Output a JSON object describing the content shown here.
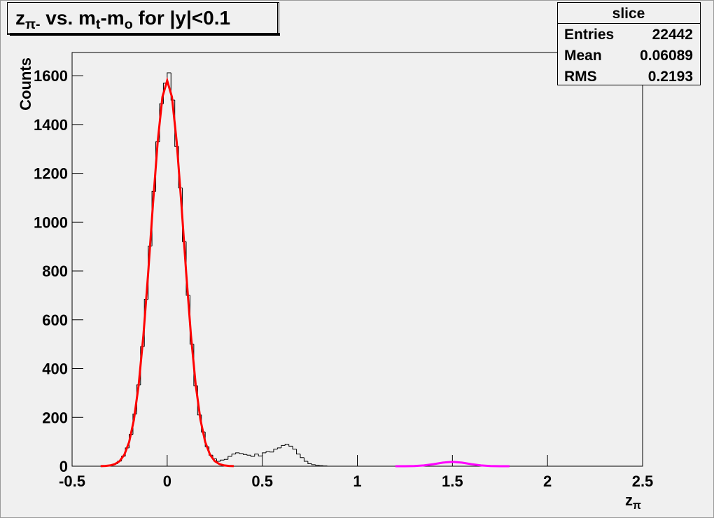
{
  "chart_data": {
    "type": "histogram",
    "title_parts": [
      {
        "text": "z"
      },
      {
        "text": "π-",
        "sub": true
      },
      {
        "text": " vs. m"
      },
      {
        "text": "t",
        "sub": true
      },
      {
        "text": "-m"
      },
      {
        "text": "o",
        "sub": true
      },
      {
        "text": " for |y|<0.1"
      }
    ],
    "xlabel_parts": [
      {
        "text": "z"
      },
      {
        "text": "π",
        "sub": true
      }
    ],
    "ylabel": "Counts",
    "xlim": [
      -0.5,
      2.5
    ],
    "ylim": [
      0,
      1695
    ],
    "xticks": [
      -0.5,
      0,
      0.5,
      1,
      1.5,
      2,
      2.5
    ],
    "yticks": [
      0,
      200,
      400,
      600,
      800,
      1000,
      1200,
      1400,
      1600
    ],
    "series": [
      {
        "type": "histogram",
        "color": "#000000",
        "bins": [
          -0.3,
          -0.28,
          -0.26,
          -0.24,
          -0.22,
          -0.2,
          -0.18,
          -0.16,
          -0.14,
          -0.12,
          -0.1,
          -0.08,
          -0.06,
          -0.04,
          -0.02,
          0,
          0.02,
          0.04,
          0.06,
          0.08,
          0.1,
          0.12,
          0.14,
          0.16,
          0.18,
          0.2,
          0.22,
          0.24,
          0.26,
          0.28,
          0.3,
          0.32,
          0.34,
          0.36,
          0.38,
          0.4,
          0.42,
          0.44,
          0.46,
          0.48,
          0.5,
          0.52,
          0.54,
          0.56,
          0.58,
          0.6,
          0.62,
          0.64,
          0.66,
          0.68,
          0.7,
          0.72,
          0.74,
          0.76,
          0.78,
          0.8,
          0.82,
          0.84
        ],
        "values": [
          5,
          10,
          21,
          41,
          75,
          130,
          214,
          333,
          490,
          684,
          902,
          1126,
          1329,
          1485,
          1569,
          1612,
          1500,
          1310,
          1140,
          920,
          700,
          500,
          330,
          210,
          140,
          80,
          45,
          30,
          20,
          25,
          28,
          40,
          50,
          55,
          52,
          48,
          45,
          40,
          50,
          42,
          55,
          60,
          58,
          70,
          75,
          85,
          90,
          82,
          70,
          50,
          35,
          20,
          10,
          6,
          4,
          2,
          1
        ]
      },
      {
        "type": "line",
        "color": "#ff0000",
        "x": [
          -0.35,
          -0.325,
          -0.3,
          -0.275,
          -0.25,
          -0.225,
          -0.2,
          -0.175,
          -0.15,
          -0.125,
          -0.1,
          -0.075,
          -0.05,
          -0.025,
          0,
          0.025,
          0.05,
          0.075,
          0.1,
          0.125,
          0.15,
          0.175,
          0.2,
          0.225,
          0.25,
          0.275,
          0.3,
          0.325,
          0.35
        ],
        "values": [
          0.3,
          1.1,
          3.1,
          8.5,
          20.8,
          47.7,
          99,
          190,
          333,
          536,
          791,
          1071,
          1329,
          1513,
          1580,
          1513,
          1329,
          1071,
          791,
          536,
          333,
          190,
          99,
          47.7,
          20.8,
          8.5,
          3.1,
          1.1,
          0.3
        ]
      },
      {
        "type": "line",
        "color": "#ff00ff",
        "x": [
          1.2,
          1.25,
          1.3,
          1.35,
          1.4,
          1.45,
          1.5,
          1.55,
          1.6,
          1.65,
          1.7,
          1.75,
          1.8
        ],
        "values": [
          0.02,
          0.14,
          0.79,
          3.1,
          8.2,
          14.8,
          18,
          14.8,
          8.2,
          3.1,
          0.79,
          0.14,
          0.02
        ]
      }
    ],
    "stats": {
      "title": "slice",
      "rows": [
        {
          "label": "Entries",
          "value": 22442
        },
        {
          "label": "Mean",
          "value": 0.06089
        },
        {
          "label": "RMS",
          "value": 0.2193
        }
      ]
    }
  }
}
